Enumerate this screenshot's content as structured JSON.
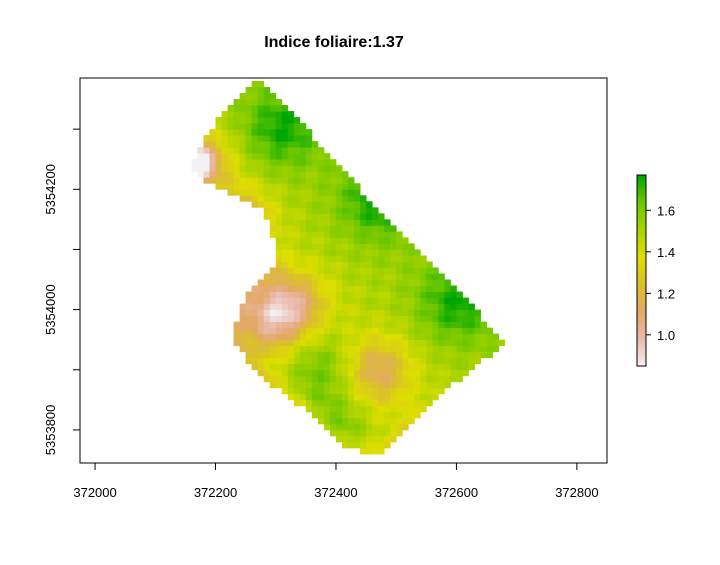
{
  "chart_data": {
    "type": "heatmap",
    "title": "Indice foliaire:1.37",
    "xlabel": "",
    "ylabel": "",
    "xlim": [
      371975,
      372850
    ],
    "ylim": [
      5353745,
      5354385
    ],
    "x_ticks": [
      {
        "value": 372000,
        "label": "372000"
      },
      {
        "value": 372200,
        "label": "372200"
      },
      {
        "value": 372400,
        "label": "372400"
      },
      {
        "value": 372600,
        "label": "372600"
      },
      {
        "value": 372800,
        "label": "372800"
      }
    ],
    "y_ticks": [
      {
        "value": 5353800,
        "label": "5353800"
      },
      {
        "value": 5353900,
        "label": ""
      },
      {
        "value": 5354000,
        "label": "5354000"
      },
      {
        "value": 5354100,
        "label": ""
      },
      {
        "value": 5354200,
        "label": "5354200"
      },
      {
        "value": 5354300,
        "label": ""
      }
    ],
    "colorbar": {
      "range": [
        0.85,
        1.77
      ],
      "ticks": [
        {
          "value": 1.0,
          "label": "1.0"
        },
        {
          "value": 1.2,
          "label": "1.2"
        },
        {
          "value": 1.4,
          "label": "1.4"
        },
        {
          "value": 1.6,
          "label": "1.6"
        }
      ],
      "colors": [
        "#f2f2f2",
        "#eab9ac",
        "#e3a867",
        "#d9c12a",
        "#dede00",
        "#a9d300",
        "#6cc700",
        "#00a600"
      ]
    },
    "field": {
      "boundary": [
        [
          372275,
          5354385
        ],
        [
          372210,
          5354330
        ],
        [
          372160,
          5354240
        ],
        [
          372180,
          5354215
        ],
        [
          372280,
          5354165
        ],
        [
          372295,
          5354125
        ],
        [
          372300,
          5354070
        ],
        [
          372250,
          5354020
        ],
        [
          372225,
          5353960
        ],
        [
          372260,
          5353900
        ],
        [
          372340,
          5353840
        ],
        [
          372410,
          5353775
        ],
        [
          372475,
          5353755
        ],
        [
          372540,
          5353820
        ],
        [
          372600,
          5353880
        ],
        [
          372680,
          5353945
        ],
        [
          372560,
          5354080
        ],
        [
          372440,
          5354200
        ]
      ],
      "cell_size": 10,
      "low_centers": [
        [
          372175,
          5354245
        ],
        [
          372290,
          5353985
        ],
        [
          372470,
          5353900
        ],
        [
          372330,
          5354010
        ],
        [
          372240,
          5354150
        ]
      ],
      "high_centers": [
        [
          372310,
          5354300
        ],
        [
          372470,
          5354180
        ],
        [
          372600,
          5354010
        ],
        [
          372400,
          5353800
        ],
        [
          372370,
          5353900
        ]
      ]
    }
  }
}
